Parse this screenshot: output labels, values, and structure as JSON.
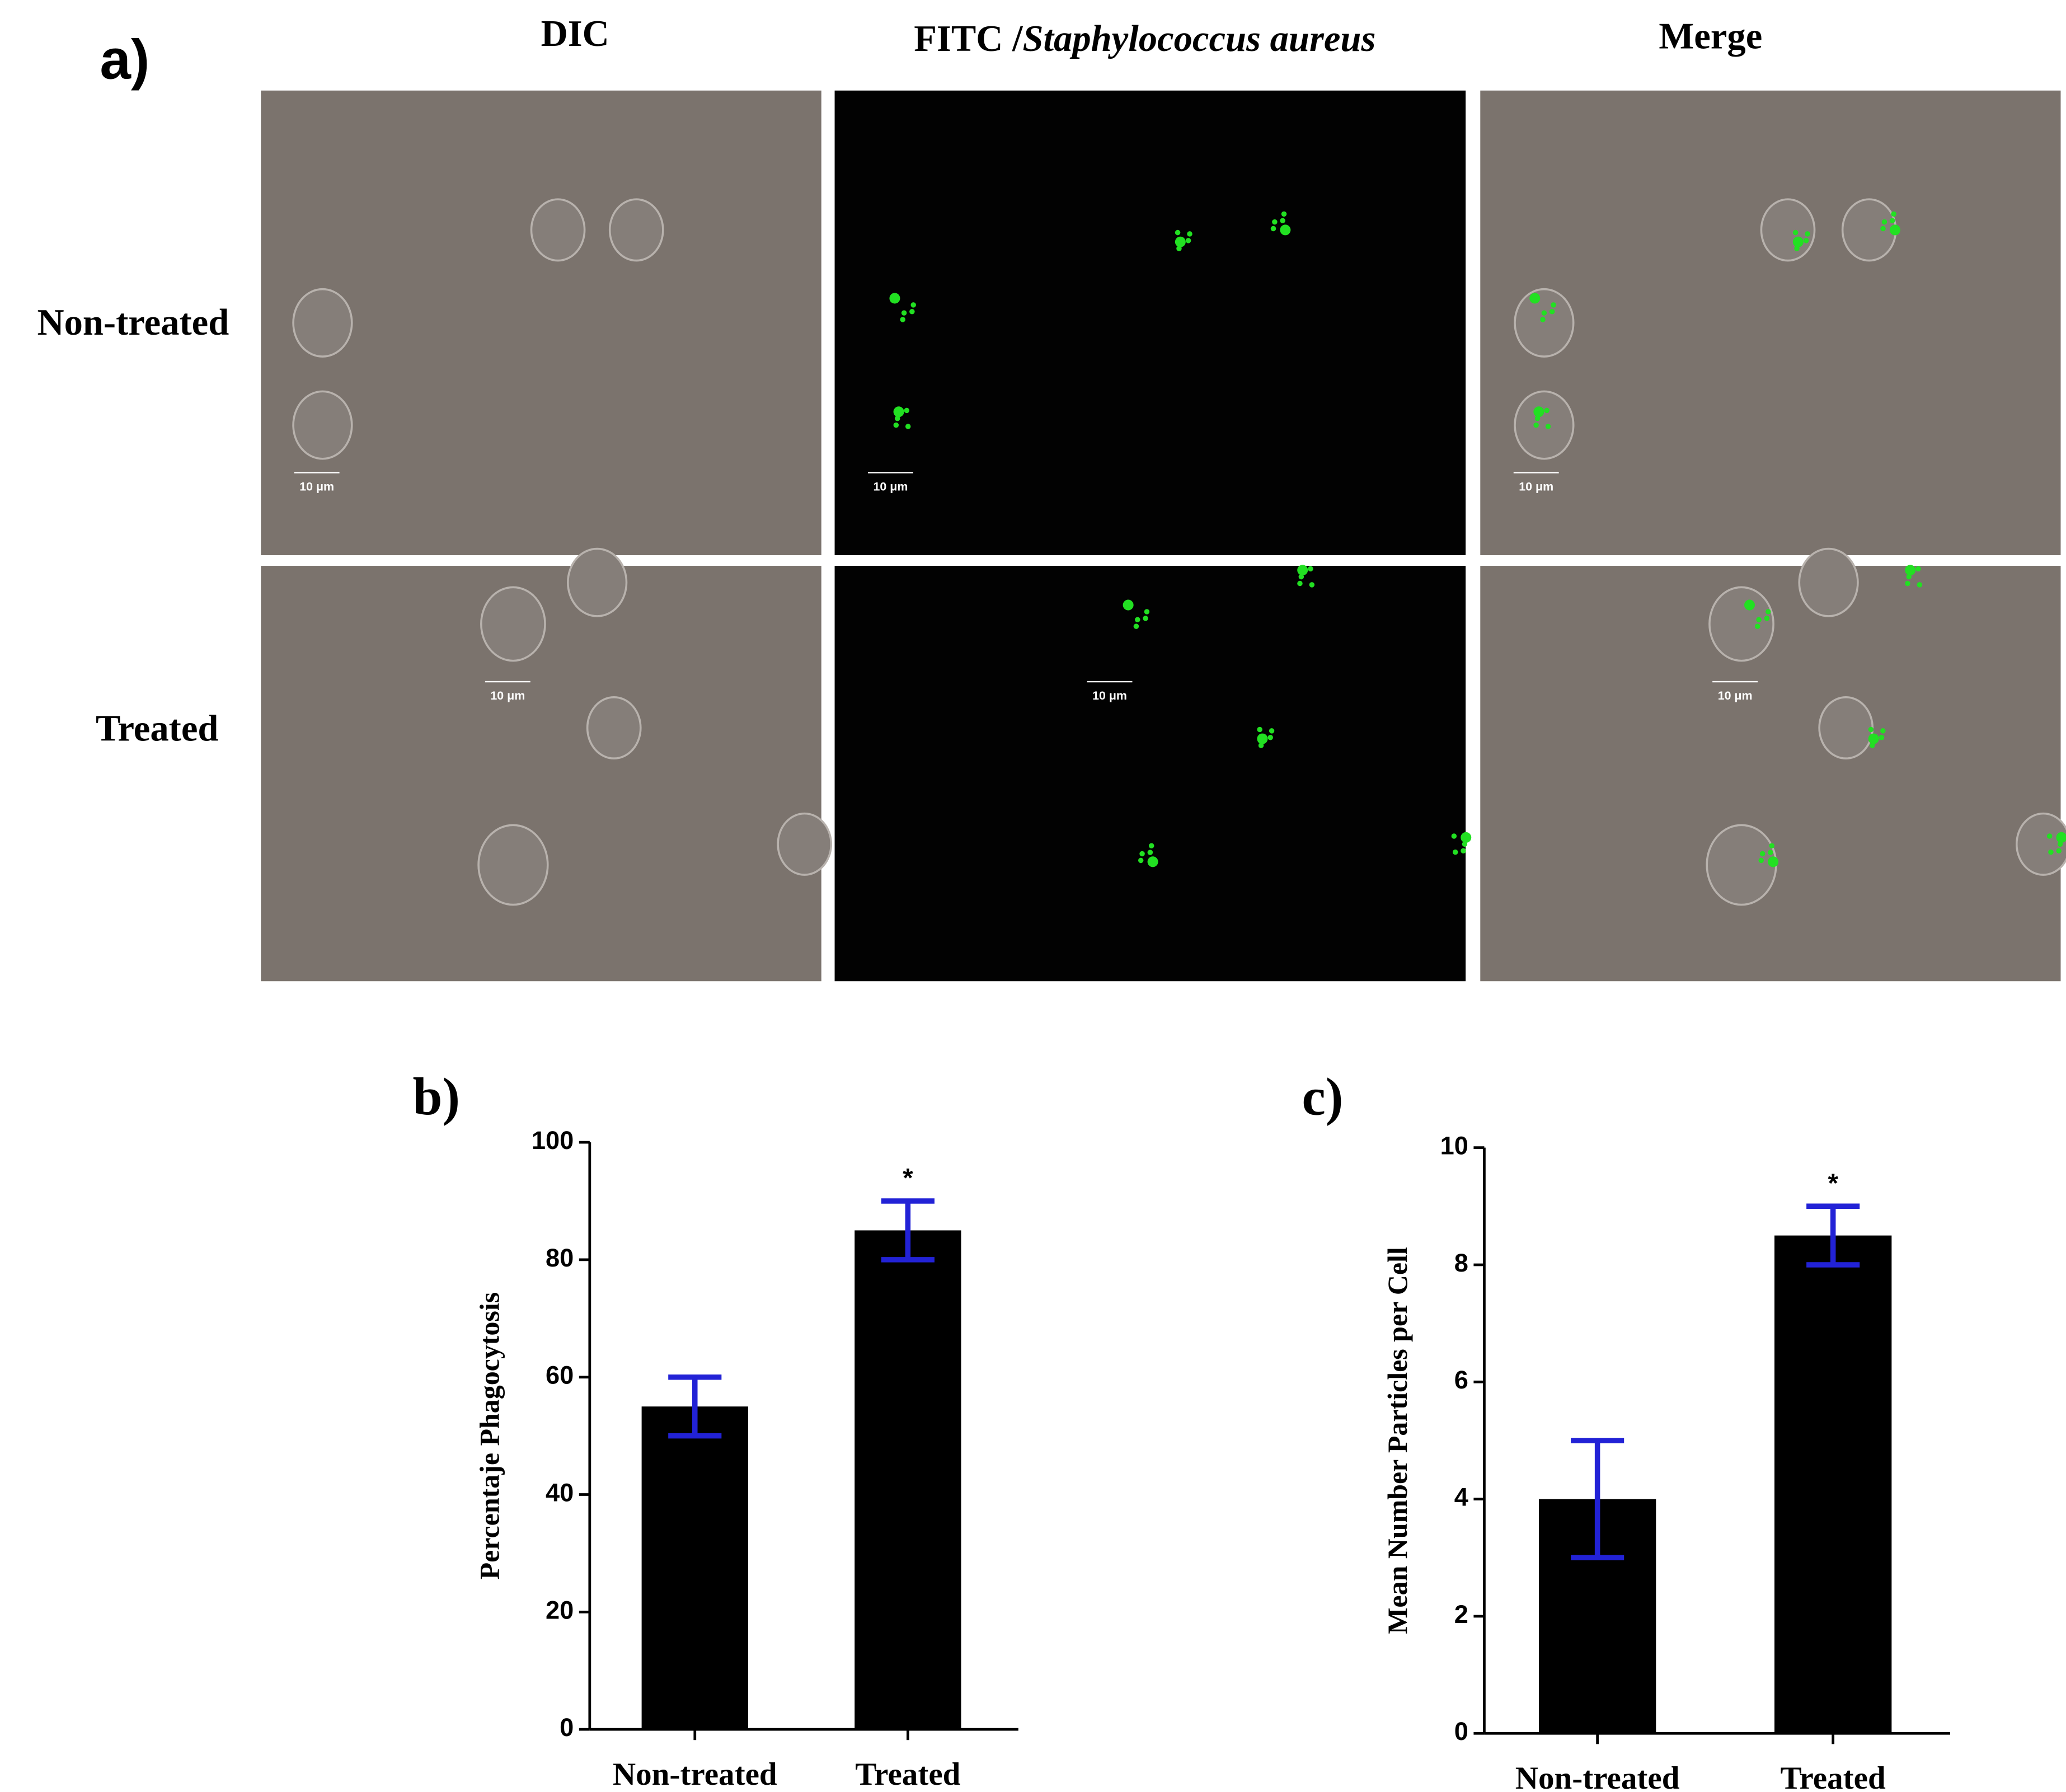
{
  "figure_a": {
    "panel_label": "a)",
    "column_titles": {
      "dic": "DIC",
      "fitc_stain": "FITC /",
      "fitc_organism": "Staphylococcus aureus",
      "merge": "Merge"
    },
    "row_labels": [
      "Non-treated",
      "Treated"
    ],
    "scale_bar_labels": [
      "10 μm",
      "10 μm",
      "10 μm",
      "10 μm",
      "10 μm",
      "10 μm"
    ]
  },
  "chart_data": [
    {
      "type": "bar",
      "panel_label": "b)",
      "y_label": "Percentaje Phagocytosis",
      "categories": [
        "Non-treated",
        "Treated"
      ],
      "values": [
        55,
        85
      ],
      "errors": [
        5,
        5
      ],
      "color": "#000000",
      "error_color": "#2222d6",
      "ylim": [
        0,
        100
      ],
      "yticks": [
        0,
        20,
        40,
        60,
        80,
        100
      ],
      "annotations": [
        {
          "text": "*",
          "category": "Treated"
        }
      ]
    },
    {
      "type": "bar",
      "panel_label": "c)",
      "y_label": "Mean Number Particles per Cell",
      "categories": [
        "Non-treated",
        "Treated"
      ],
      "values": [
        4,
        8.5
      ],
      "errors": [
        1,
        0.5
      ],
      "color": "#000000",
      "error_color": "#2222d6",
      "ylim": [
        0,
        10
      ],
      "yticks": [
        0,
        2,
        4,
        6,
        8,
        10
      ],
      "annotations": [
        {
          "text": "*",
          "category": "Treated"
        }
      ]
    }
  ]
}
